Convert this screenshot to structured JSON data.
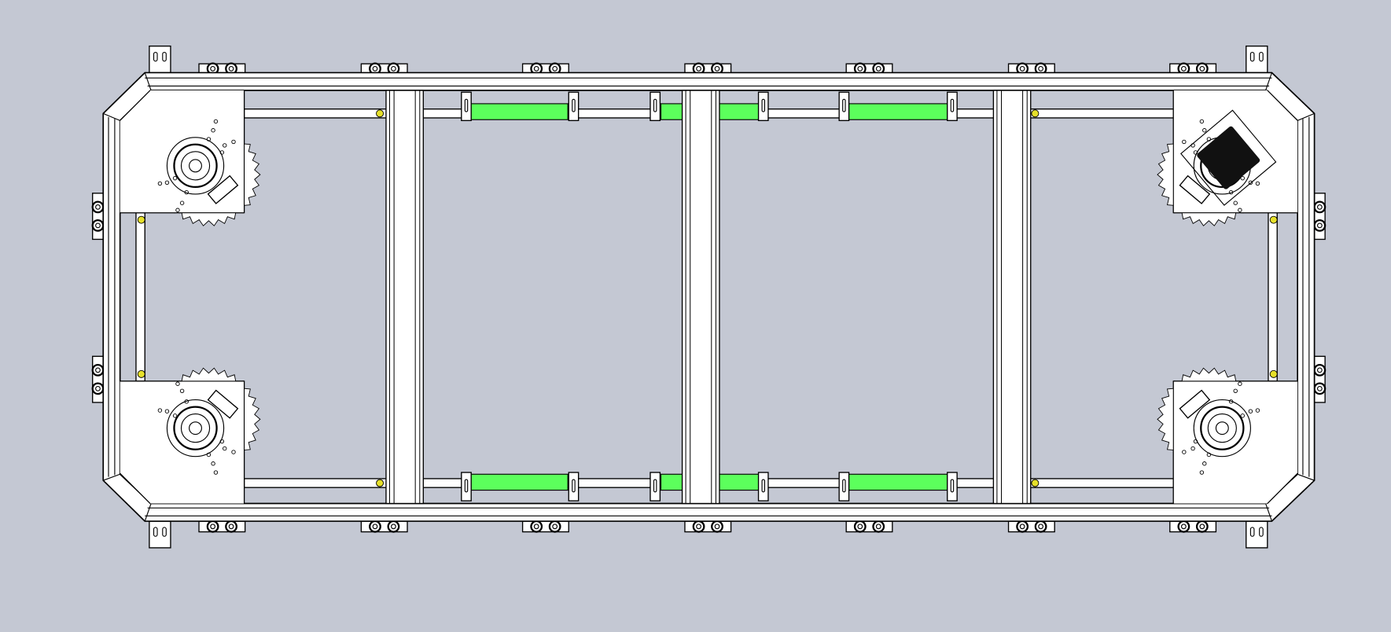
{
  "drawing": {
    "view": "top-view-frame-assembly",
    "background_color": "#c4c8d3",
    "part_fill_color": "#ffffff",
    "edge_color": "#000000",
    "guide_strip_color": "#5cff5c",
    "fastener_color": "#e6e02a",
    "motor_color": "#111111"
  }
}
